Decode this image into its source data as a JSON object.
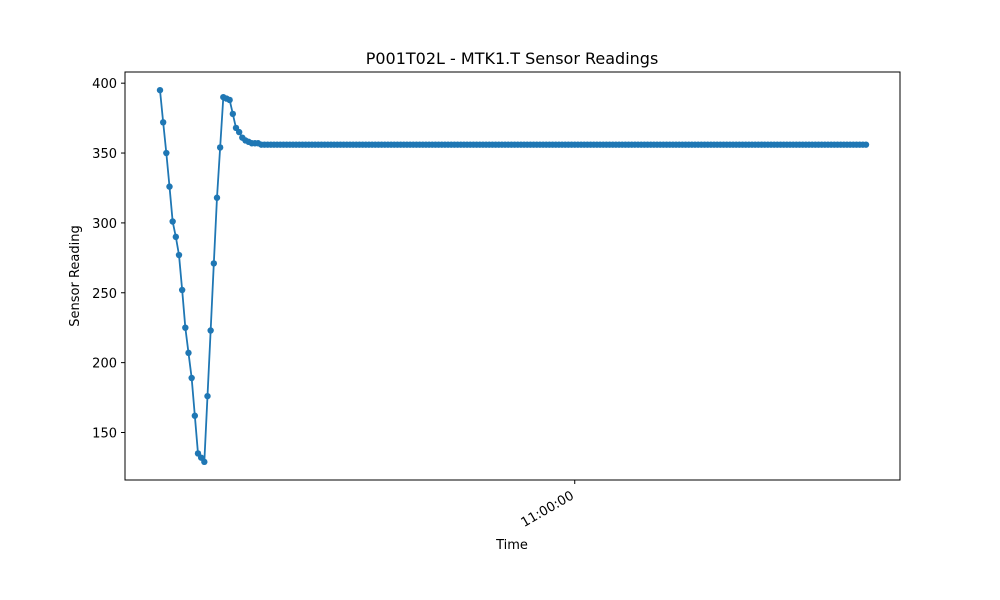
{
  "chart_data": {
    "type": "line",
    "title": "P001T02L - MTK1.T Sensor Readings",
    "xlabel": "Time",
    "ylabel": "Sensor Reading",
    "x_ticks": [
      {
        "label": "11:00:00",
        "index": 131
      }
    ],
    "y_ticks": [
      150,
      200,
      250,
      300,
      350,
      400
    ],
    "ylim": [
      116,
      408
    ],
    "grid": false,
    "legend": "none",
    "marker": "circle",
    "series_color": "#1f77b4",
    "sampling": "uniform",
    "series": [
      {
        "values": [
          395,
          372,
          350,
          326,
          301,
          290,
          277,
          252,
          225,
          207,
          189,
          162,
          135,
          132,
          129,
          176,
          223,
          271,
          318,
          354,
          390,
          389,
          388,
          378,
          368,
          365,
          361,
          359,
          358,
          357,
          357,
          357,
          356,
          356,
          356,
          356,
          356,
          356,
          356,
          356,
          356,
          356,
          356,
          356,
          356,
          356,
          356,
          356,
          356,
          356,
          356,
          356,
          356,
          356,
          356,
          356,
          356,
          356,
          356,
          356,
          356,
          356,
          356,
          356,
          356,
          356,
          356,
          356,
          356,
          356,
          356,
          356,
          356,
          356,
          356,
          356,
          356,
          356,
          356,
          356,
          356,
          356,
          356,
          356,
          356,
          356,
          356,
          356,
          356,
          356,
          356,
          356,
          356,
          356,
          356,
          356,
          356,
          356,
          356,
          356,
          356,
          356,
          356,
          356,
          356,
          356,
          356,
          356,
          356,
          356,
          356,
          356,
          356,
          356,
          356,
          356,
          356,
          356,
          356,
          356,
          356,
          356,
          356,
          356,
          356,
          356,
          356,
          356,
          356,
          356,
          356,
          356,
          356,
          356,
          356,
          356,
          356,
          356,
          356,
          356,
          356,
          356,
          356,
          356,
          356,
          356,
          356,
          356,
          356,
          356,
          356,
          356,
          356,
          356,
          356,
          356,
          356,
          356,
          356,
          356,
          356,
          356,
          356,
          356,
          356,
          356,
          356,
          356,
          356,
          356,
          356,
          356,
          356,
          356,
          356,
          356,
          356,
          356,
          356,
          356,
          356,
          356,
          356,
          356,
          356,
          356,
          356,
          356,
          356,
          356,
          356,
          356,
          356,
          356,
          356,
          356,
          356,
          356,
          356,
          356,
          356,
          356,
          356,
          356,
          356,
          356,
          356,
          356,
          356,
          356,
          356,
          356,
          356,
          356,
          356,
          356,
          356,
          356,
          356,
          356,
          356,
          356,
          356,
          356
        ]
      }
    ]
  }
}
